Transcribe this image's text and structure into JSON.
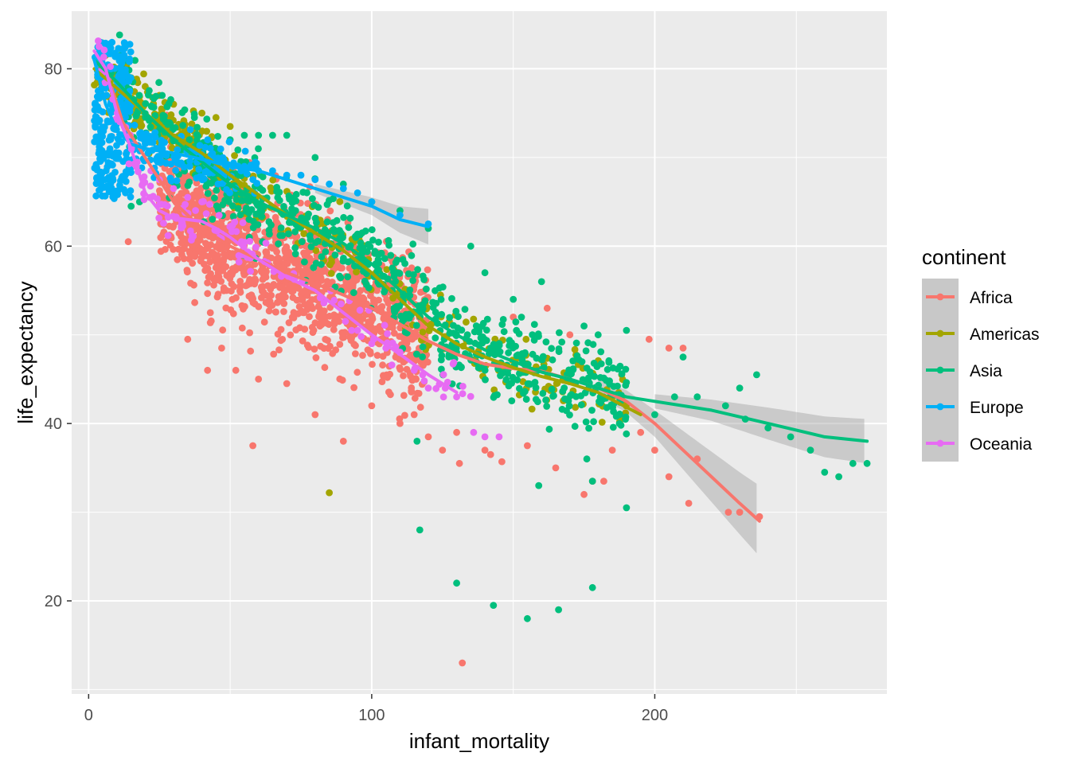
{
  "chart_data": {
    "type": "scatter",
    "xlabel": "infant_mortality",
    "ylabel": "life_expectancy",
    "xlim": [
      -6,
      282
    ],
    "ylim": [
      9.5,
      86.5
    ],
    "x_ticks": [
      0,
      100,
      200
    ],
    "y_ticks": [
      20,
      40,
      60,
      80
    ],
    "x_tick_labels": [
      "0",
      "100",
      "200"
    ],
    "y_tick_labels": [
      "20",
      "40",
      "60",
      "80"
    ],
    "grid": true,
    "legend": {
      "title": "continent",
      "position": "right"
    },
    "series": [
      {
        "name": "Africa",
        "color": "#F8766D",
        "smooth": [
          [
            6,
            80
          ],
          [
            12,
            74
          ],
          [
            20,
            70
          ],
          [
            30,
            65
          ],
          [
            40,
            62
          ],
          [
            50,
            60
          ],
          [
            60,
            58.5
          ],
          [
            70,
            57
          ],
          [
            80,
            55.8
          ],
          [
            90,
            54.5
          ],
          [
            100,
            53
          ],
          [
            110,
            51.2
          ],
          [
            120,
            49.3
          ],
          [
            130,
            47.8
          ],
          [
            140,
            46.7
          ],
          [
            150,
            46.2
          ],
          [
            160,
            45.9
          ],
          [
            170,
            45
          ],
          [
            180,
            44
          ],
          [
            190,
            42.5
          ],
          [
            200,
            40
          ],
          [
            210,
            37
          ],
          [
            220,
            34
          ],
          [
            230,
            31
          ],
          [
            237,
            29
          ]
        ],
        "band": [
          [
            180,
            1
          ],
          [
            200,
            1.5
          ],
          [
            215,
            2.5
          ],
          [
            230,
            3.5
          ],
          [
            237,
            4
          ]
        ],
        "points": [
          [
            14,
            60.5
          ],
          [
            58,
            37.5
          ],
          [
            132,
            13
          ],
          [
            131,
            35.5
          ],
          [
            230,
            30
          ],
          [
            237,
            29.5
          ],
          [
            226,
            30
          ],
          [
            215,
            36
          ],
          [
            205,
            48.5
          ],
          [
            210,
            48.5
          ],
          [
            198,
            49.5
          ],
          [
            170,
            50
          ],
          [
            162,
            53
          ],
          [
            150,
            52
          ],
          [
            178,
            33.5
          ],
          [
            182,
            33.5
          ],
          [
            175,
            32
          ],
          [
            195,
            39
          ],
          [
            200,
            37
          ],
          [
            35,
            49.5
          ],
          [
            42,
            46
          ],
          [
            47,
            48.5
          ],
          [
            52,
            46
          ],
          [
            60,
            45
          ],
          [
            70,
            44.5
          ],
          [
            80,
            41
          ],
          [
            90,
            38
          ],
          [
            100,
            42
          ],
          [
            110,
            40
          ],
          [
            115,
            41
          ],
          [
            120,
            38.5
          ],
          [
            125,
            37
          ],
          [
            130,
            39
          ],
          [
            140,
            37
          ],
          [
            142,
            36.5
          ],
          [
            146,
            35.7
          ],
          [
            155,
            37.5
          ],
          [
            165,
            35
          ],
          [
            185,
            37
          ],
          [
            205,
            34
          ],
          [
            212,
            31
          ]
        ],
        "clouds": [
          {
            "n": 1300,
            "x": [
              25,
              120
            ],
            "mode": "band",
            "spread": 7
          }
        ]
      },
      {
        "name": "Americas",
        "color": "#A3A500",
        "smooth": [
          [
            2,
            80
          ],
          [
            10,
            77.8
          ],
          [
            20,
            75
          ],
          [
            30,
            72.5
          ],
          [
            40,
            70.5
          ],
          [
            50,
            68
          ],
          [
            60,
            65.8
          ],
          [
            70,
            63.5
          ],
          [
            80,
            61.5
          ],
          [
            90,
            59.5
          ],
          [
            100,
            57
          ],
          [
            110,
            54
          ],
          [
            120,
            51
          ],
          [
            130,
            49
          ],
          [
            140,
            47.5
          ],
          [
            150,
            46.3
          ],
          [
            160,
            45.3
          ],
          [
            170,
            44.5
          ],
          [
            180,
            43.5
          ],
          [
            195,
            41
          ]
        ],
        "points": [
          [
            85,
            32.2
          ],
          [
            50,
            73.5
          ],
          [
            45,
            74.5
          ],
          [
            40,
            75
          ],
          [
            30,
            76
          ],
          [
            25,
            77
          ],
          [
            20,
            78
          ],
          [
            15,
            79
          ],
          [
            10,
            80
          ]
        ],
        "clouds": [
          {
            "n": 240,
            "x": [
              2,
              60
            ],
            "mode": "curve",
            "spread": 2.8
          },
          {
            "n": 160,
            "x": [
              60,
              190
            ],
            "mode": "curve",
            "spread": 3.5
          }
        ]
      },
      {
        "name": "Asia",
        "color": "#00BF7D",
        "smooth": [
          [
            2,
            81
          ],
          [
            10,
            78.5
          ],
          [
            20,
            75
          ],
          [
            30,
            72
          ],
          [
            40,
            69.5
          ],
          [
            50,
            67
          ],
          [
            60,
            65
          ],
          [
            70,
            63.5
          ],
          [
            80,
            62
          ],
          [
            90,
            60.3
          ],
          [
            100,
            58
          ],
          [
            110,
            55
          ],
          [
            120,
            52
          ],
          [
            130,
            50
          ],
          [
            140,
            48.3
          ],
          [
            150,
            47
          ],
          [
            160,
            45.8
          ],
          [
            170,
            45
          ],
          [
            180,
            44
          ],
          [
            190,
            43
          ],
          [
            200,
            42.5
          ],
          [
            220,
            41.5
          ],
          [
            240,
            40
          ],
          [
            260,
            38.5
          ],
          [
            275,
            38
          ]
        ],
        "band": [
          [
            200,
            0.8
          ],
          [
            220,
            1.2
          ],
          [
            240,
            1.8
          ],
          [
            260,
            2.3
          ],
          [
            275,
            2.5
          ]
        ],
        "points": [
          [
            116,
            38
          ],
          [
            117,
            28
          ],
          [
            130,
            22
          ],
          [
            143,
            19.5
          ],
          [
            155,
            18
          ],
          [
            166,
            19
          ],
          [
            178,
            21.5
          ],
          [
            190,
            30.5
          ],
          [
            176,
            36
          ],
          [
            178,
            33.5
          ],
          [
            159,
            33
          ],
          [
            270,
            35.5
          ],
          [
            265,
            34
          ],
          [
            275,
            35.5
          ],
          [
            260,
            34.5
          ],
          [
            255,
            37
          ],
          [
            248,
            38.5
          ],
          [
            240,
            39.5
          ],
          [
            232,
            40.5
          ],
          [
            225,
            42
          ],
          [
            215,
            43
          ],
          [
            207,
            43
          ],
          [
            200,
            41
          ],
          [
            230,
            44
          ],
          [
            236,
            45.5
          ],
          [
            210,
            47.5
          ],
          [
            190,
            50.5
          ],
          [
            180,
            50
          ],
          [
            175,
            51
          ],
          [
            160,
            56
          ],
          [
            150,
            54
          ],
          [
            140,
            57
          ],
          [
            135,
            60
          ],
          [
            120,
            62
          ],
          [
            110,
            64
          ],
          [
            100,
            65
          ],
          [
            90,
            67
          ],
          [
            80,
            70
          ],
          [
            70,
            72.5
          ],
          [
            65,
            72.5
          ],
          [
            60,
            72.5
          ],
          [
            55,
            72.5
          ],
          [
            50,
            72
          ],
          [
            45,
            71
          ],
          [
            40,
            70
          ],
          [
            18,
            65
          ],
          [
            15,
            64.5
          ],
          [
            6,
            80
          ],
          [
            8,
            79.5
          ],
          [
            12,
            80
          ],
          [
            10,
            78
          ],
          [
            5,
            82
          ],
          [
            4,
            83
          ]
        ],
        "clouds": [
          {
            "n": 700,
            "x": [
              10,
              190
            ],
            "mode": "curve",
            "spread": 4.5
          }
        ]
      },
      {
        "name": "Europe",
        "color": "#00B0F6",
        "smooth": [
          [
            2,
            81
          ],
          [
            6,
            76
          ],
          [
            10,
            73
          ],
          [
            15,
            71.5
          ],
          [
            20,
            71
          ],
          [
            30,
            70.5
          ],
          [
            40,
            69.8
          ],
          [
            50,
            69
          ],
          [
            60,
            68.5
          ],
          [
            70,
            67.5
          ],
          [
            80,
            66.5
          ],
          [
            90,
            65.5
          ],
          [
            100,
            64.5
          ],
          [
            110,
            63
          ],
          [
            120,
            62.2
          ]
        ],
        "band": [
          [
            80,
            0.5
          ],
          [
            100,
            1
          ],
          [
            110,
            1.5
          ],
          [
            120,
            2
          ]
        ],
        "points": [
          [
            110,
            63.5
          ],
          [
            120,
            62.5
          ],
          [
            100,
            65
          ],
          [
            95,
            66
          ],
          [
            90,
            66.5
          ],
          [
            85,
            67
          ],
          [
            80,
            67.5
          ],
          [
            75,
            68
          ],
          [
            70,
            68
          ],
          [
            65,
            68.5
          ],
          [
            60,
            68.5
          ],
          [
            55,
            69
          ]
        ],
        "clouds": [
          {
            "n": 260,
            "x": [
              2,
              15
            ],
            "mode": "box",
            "y": [
              65,
              83
            ]
          },
          {
            "n": 140,
            "x": [
              15,
              60
            ],
            "mode": "curve",
            "spread": 2.5
          }
        ]
      },
      {
        "name": "Oceania",
        "color": "#E76BF3",
        "smooth": [
          [
            2,
            82
          ],
          [
            6,
            80
          ],
          [
            10,
            75
          ],
          [
            15,
            71
          ],
          [
            20,
            66
          ],
          [
            25,
            64
          ],
          [
            30,
            63.2
          ],
          [
            35,
            63
          ],
          [
            40,
            62.8
          ],
          [
            45,
            62
          ],
          [
            50,
            61
          ],
          [
            60,
            58.5
          ],
          [
            70,
            56.5
          ],
          [
            80,
            55
          ],
          [
            90,
            52.5
          ],
          [
            100,
            50
          ],
          [
            110,
            47.8
          ],
          [
            120,
            45.5
          ],
          [
            130,
            43.5
          ]
        ],
        "points": [
          [
            130,
            43
          ],
          [
            126,
            44
          ],
          [
            120,
            44
          ],
          [
            118,
            45.5
          ],
          [
            115,
            46
          ],
          [
            110,
            48
          ],
          [
            105,
            48.5
          ],
          [
            100,
            49
          ],
          [
            95,
            50.5
          ],
          [
            136,
            39
          ],
          [
            140,
            38.5
          ],
          [
            145,
            38.5
          ],
          [
            40,
            65
          ],
          [
            35,
            65.5
          ],
          [
            30,
            66.5
          ],
          [
            25,
            67.5
          ],
          [
            22,
            68.5
          ]
        ],
        "clouds": [
          {
            "n": 90,
            "x": [
              2,
              60
            ],
            "mode": "curve",
            "spread": 2.0
          },
          {
            "n": 40,
            "x": [
              60,
              135
            ],
            "mode": "curve",
            "spread": 2.2
          }
        ]
      }
    ]
  }
}
